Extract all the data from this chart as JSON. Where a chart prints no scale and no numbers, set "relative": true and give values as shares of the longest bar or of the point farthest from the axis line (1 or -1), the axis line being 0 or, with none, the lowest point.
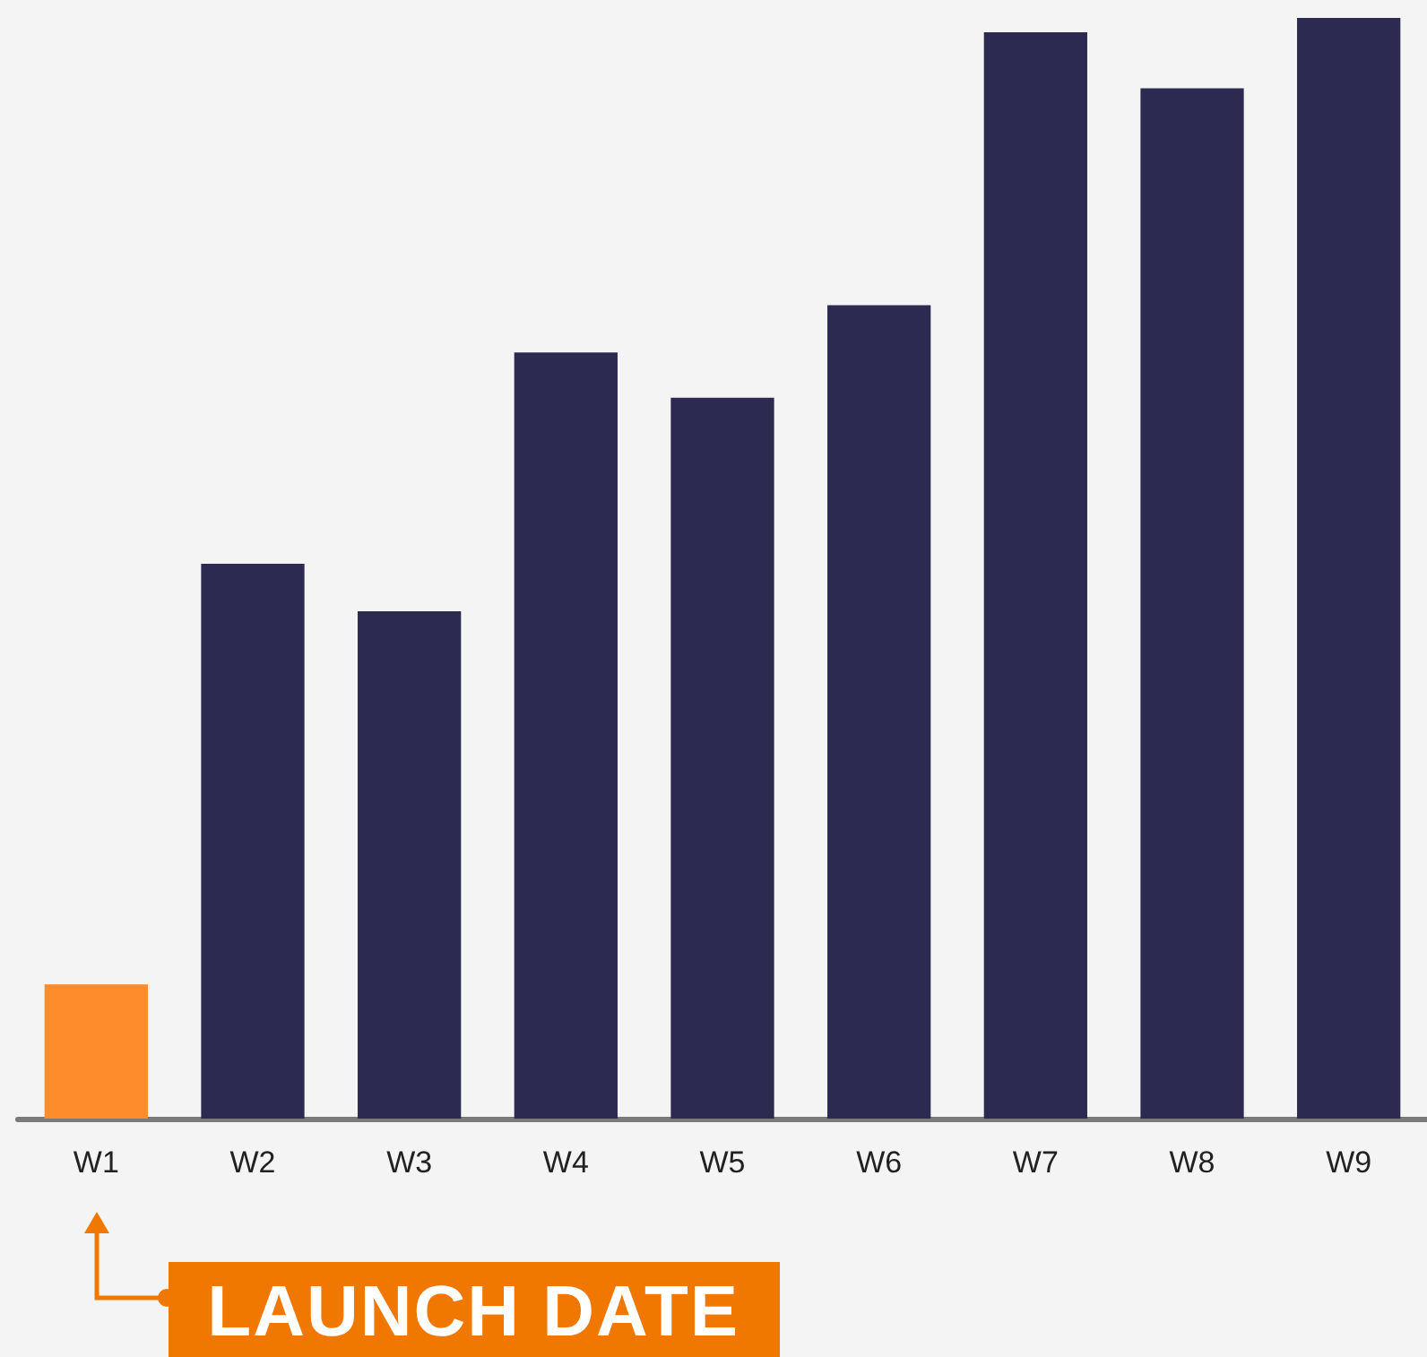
{
  "chart_data": {
    "type": "bar",
    "relative": true,
    "categories": [
      "W1",
      "W2",
      "W3",
      "W4",
      "W5",
      "W6",
      "W7",
      "W8",
      "W9"
    ],
    "values": [
      0.122,
      0.504,
      0.461,
      0.696,
      0.655,
      0.739,
      0.987,
      0.936,
      1
    ],
    "colors": [
      "#ff8c2a",
      "#2d2a52",
      "#2d2a52",
      "#2d2a52",
      "#2d2a52",
      "#2d2a52",
      "#2d2a52",
      "#2d2a52",
      "#2d2a52"
    ],
    "annotations": [
      "LAUNCH DATE"
    ]
  }
}
